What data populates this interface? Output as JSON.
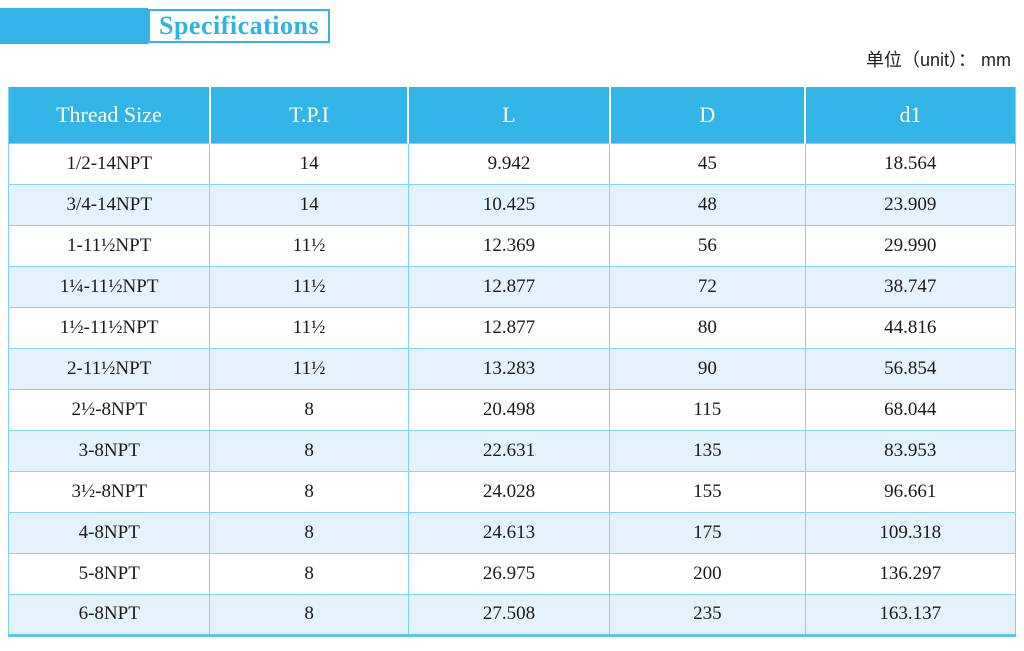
{
  "title": {
    "label": "Specifications"
  },
  "unit_note": "单位（unit）： mm",
  "colors": {
    "accent": "#33b4e6",
    "title_text": "#2eb3e8",
    "row_alt": "#e4f2fb",
    "grid": "#7fd4f0",
    "outer_border": "#5bc6ee"
  },
  "table": {
    "columns": [
      "Thread Size",
      "T.P.I",
      "L",
      "D",
      "d1"
    ],
    "rows": [
      [
        "1/2-14NPT",
        "14",
        "9.942",
        "45",
        "18.564"
      ],
      [
        "3/4-14NPT",
        "14",
        "10.425",
        "48",
        "23.909"
      ],
      [
        "1-11½NPT",
        "11½",
        "12.369",
        "56",
        "29.990"
      ],
      [
        "1¼-11½NPT",
        "11½",
        "12.877",
        "72",
        "38.747"
      ],
      [
        "1½-11½NPT",
        "11½",
        "12.877",
        "80",
        "44.816"
      ],
      [
        "2-11½NPT",
        "11½",
        "13.283",
        "90",
        "56.854"
      ],
      [
        "2½-8NPT",
        "8",
        "20.498",
        "115",
        "68.044"
      ],
      [
        "3-8NPT",
        "8",
        "22.631",
        "135",
        "83.953"
      ],
      [
        "3½-8NPT",
        "8",
        "24.028",
        "155",
        "96.661"
      ],
      [
        "4-8NPT",
        "8",
        "24.613",
        "175",
        "109.318"
      ],
      [
        "5-8NPT",
        "8",
        "26.975",
        "200",
        "136.297"
      ],
      [
        "6-8NPT",
        "8",
        "27.508",
        "235",
        "163.137"
      ]
    ]
  }
}
